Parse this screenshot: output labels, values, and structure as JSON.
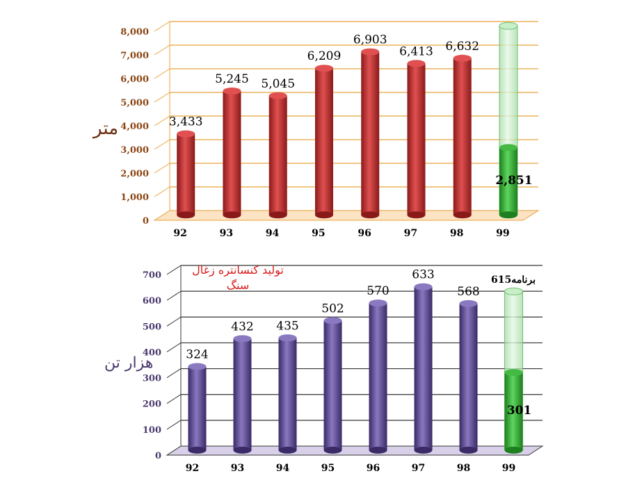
{
  "chart_data": [
    {
      "type": "bar",
      "categories": [
        "92",
        "93",
        "94",
        "95",
        "96",
        "97",
        "98",
        "99"
      ],
      "values": [
        3433,
        5245,
        5045,
        6209,
        6903,
        6413,
        6632,
        2851
      ],
      "value_labels": [
        "3,433",
        "5,245",
        "5,045",
        "6,209",
        "6,903",
        "6,413",
        "6,632",
        "2,851"
      ],
      "target_99": 8000,
      "ylabel": "متر",
      "yticks": [
        "0",
        "1,000",
        "2,000",
        "3,000",
        "4,000",
        "5,000",
        "6,000",
        "7,000",
        "8,000"
      ],
      "ylim": [
        0,
        8000
      ],
      "colors": {
        "bars": "#c0302f",
        "last": "#2ea82e",
        "grid": "#e8a23a",
        "ticks": "#8b4513"
      }
    },
    {
      "type": "bar",
      "categories": [
        "92",
        "93",
        "94",
        "95",
        "96",
        "97",
        "98",
        "99"
      ],
      "values": [
        324,
        432,
        435,
        502,
        570,
        633,
        568,
        301
      ],
      "value_labels": [
        "324",
        "432",
        "435",
        "502",
        "570",
        "633",
        "568",
        "301"
      ],
      "target_99": 615,
      "title": "تولید کنسانتره زغال سنگ",
      "plan_label": "برنامه615",
      "ylabel": "هزار تن",
      "yticks": [
        "0",
        "100",
        "200",
        "300",
        "400",
        "500",
        "600",
        "700"
      ],
      "ylim": [
        0,
        700
      ],
      "colors": {
        "bars": "#5a4a8a",
        "last": "#2ea82e",
        "grid": "#333333",
        "ticks": "#4a3a6e"
      }
    }
  ]
}
